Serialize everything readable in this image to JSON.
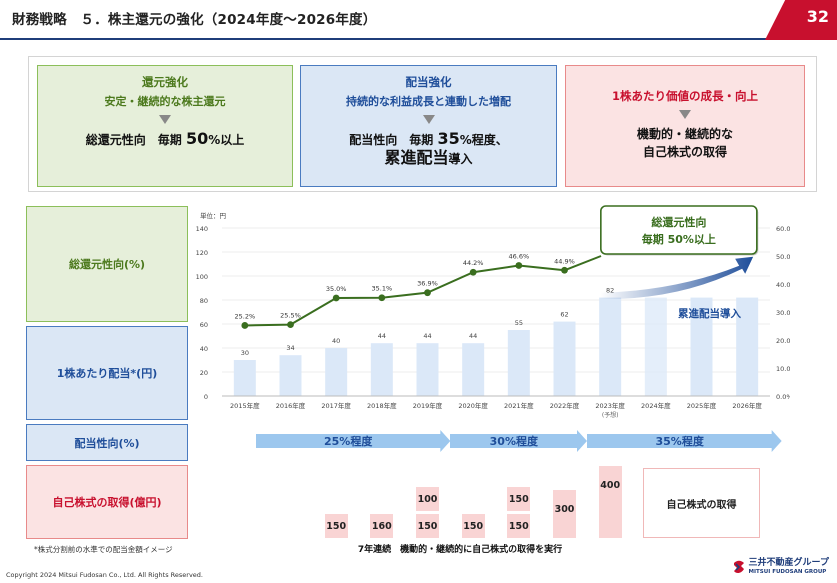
{
  "header": {
    "title": "財務戦略　５．株主還元の強化（2024年度～2026年度）",
    "page_number": "32"
  },
  "policy_boxes": {
    "green": {
      "line1": "還元強化",
      "line2": "安定・継続的な株主還元",
      "main_a": "総還元性向　毎期 ",
      "main_big": "50",
      "main_b": "%以上"
    },
    "blue": {
      "line1": "配当強化",
      "line2": "持続的な利益成長と連動した増配",
      "main_a": "配当性向　毎期 ",
      "main_big": "35",
      "main_b": "%程度、",
      "main2_big": "累進配当",
      "main2_b": "導入"
    },
    "red": {
      "line1": "1株あたり価値の成長・向上",
      "main_a": "機動的・継続的な",
      "main_b": "自己株式の取得"
    }
  },
  "row_labels": {
    "total_return": "総還元性向(%)",
    "dps": "1株あたり配当*(円)",
    "payout": "配当性向(%)",
    "buyback": "自己株式の取得(億円)"
  },
  "chart_data": {
    "type": "bar+line",
    "unit_label": "単位：円",
    "categories": [
      "2015年度",
      "2016年度",
      "2017年度",
      "2018年度",
      "2019年度",
      "2020年度",
      "2021年度",
      "2022年度",
      "2023年度",
      "2024年度",
      "2025年度",
      "2026年度"
    ],
    "category_sublabels": [
      "",
      "",
      "",
      "",
      "",
      "",
      "",
      "",
      "(予想)",
      "",
      "",
      ""
    ],
    "left_axis": {
      "ticks": [
        "0",
        "20",
        "40",
        "60",
        "80",
        "100",
        "120",
        "140"
      ],
      "ylim": [
        0,
        140
      ]
    },
    "right_axis": {
      "ticks": [
        "0.0%",
        "10.0%",
        "20.0%",
        "30.0%",
        "40.0%",
        "50.0%",
        "60.0%"
      ],
      "ylim": [
        0,
        60
      ]
    },
    "series": [
      {
        "name": "1株あたり配当",
        "kind": "bar",
        "axis": "left",
        "values": [
          30,
          34,
          40,
          44,
          44,
          44,
          55,
          62,
          82,
          null,
          null,
          null
        ],
        "labels": [
          "30",
          "34",
          "40",
          "44",
          "44",
          "44",
          "55",
          "62",
          "82",
          "",
          "",
          ""
        ]
      },
      {
        "name": "総還元性向",
        "kind": "line",
        "axis": "right",
        "values": [
          25.2,
          25.5,
          35.0,
          35.1,
          36.9,
          44.2,
          46.6,
          44.9,
          null,
          null,
          null,
          null
        ],
        "labels": [
          "25.2%",
          "25.5%",
          "35.0%",
          "35.1%",
          "36.9%",
          "44.2%",
          "46.6%",
          "44.9%",
          "",
          "",
          "",
          ""
        ]
      }
    ],
    "future_bars": {
      "from_index": 9,
      "to_index": 11,
      "value": 82
    },
    "callout": {
      "line1": "総還元性向",
      "line2": "毎期 50%以上"
    },
    "progressive_label": "累進配当導入",
    "colors": {
      "bar": "#dbe8f8",
      "line": "#3a6e1f",
      "arrow": "#1f4e9a"
    }
  },
  "payout_ranges": [
    {
      "label": "25%程度",
      "from_index": 0,
      "to_index": 4
    },
    {
      "label": "30%程度",
      "from_index": 5,
      "to_index": 7
    },
    {
      "label": "35%程度",
      "from_index": 8,
      "to_index": 11
    }
  ],
  "buyback": {
    "cells": [
      {
        "index": 2,
        "values": [
          "150"
        ]
      },
      {
        "index": 3,
        "values": [
          "160"
        ]
      },
      {
        "index": 4,
        "values": [
          "150",
          "100"
        ]
      },
      {
        "index": 5,
        "values": [
          "150"
        ]
      },
      {
        "index": 6,
        "values": [
          "150",
          "150"
        ]
      },
      {
        "index": 7,
        "values": [
          "300"
        ]
      },
      {
        "index": 8,
        "values": [
          "400"
        ]
      }
    ],
    "future_label": "自己株式の取得",
    "caption": "7年連続　機動的・継続的に自己株式の取得を実行"
  },
  "footnote": "*株式分割前の水準での配当金額イメージ",
  "copyright": "Copyright 2024 Mitsui Fudosan Co., Ltd. All Rights Reserved.",
  "logo": {
    "jp": "三井不動産グループ",
    "en": "MITSUI FUDOSAN GROUP"
  }
}
